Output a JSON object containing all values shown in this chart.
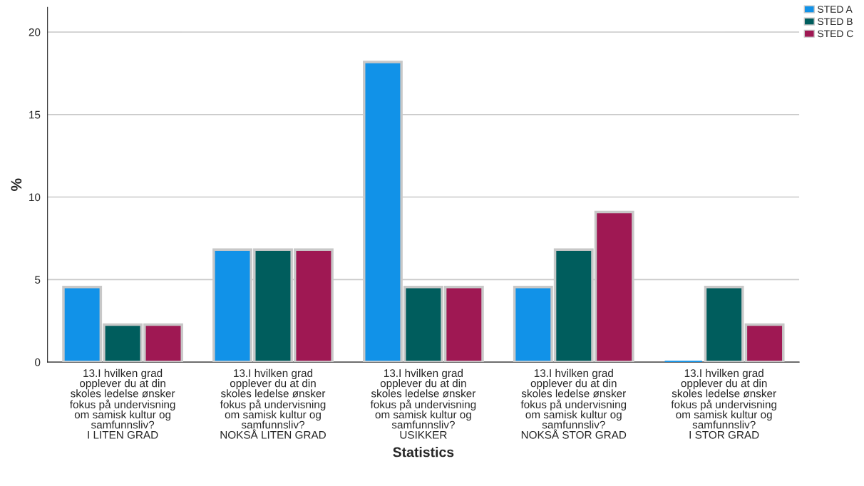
{
  "chart_data": {
    "type": "bar",
    "ylabel": "%",
    "xlabel": "Statistics",
    "categories": [
      "13.I hvilken grad\nopplever du at din\nskoles ledelse ønsker\nfokus på undervisning\nom samisk kultur og\nsamfunnsliv?\nI LITEN GRAD",
      "13.I hvilken grad\nopplever du at din\nskoles ledelse ønsker\nfokus på undervisning\nom samisk kultur og\nsamfunnsliv?\nNOKSÅ LITEN GRAD",
      "13.I hvilken grad\nopplever du at din\nskoles ledelse ønsker\nfokus på undervisning\nom samisk kultur og\nsamfunnsliv?\nUSIKKER",
      "13.I hvilken grad\nopplever du at din\nskoles ledelse ønsker\nfokus på undervisning\nom samisk kultur og\nsamfunnsliv?\nNOKSÅ STOR GRAD",
      "13.I hvilken grad\nopplever du at din\nskoles ledelse ønsker\nfokus på undervisning\nom samisk kultur og\nsamfunnsliv?\nI STOR GRAD"
    ],
    "series": [
      {
        "name": "STED A",
        "color": "#1192e8",
        "values": [
          4.55,
          6.82,
          18.18,
          4.55,
          0
        ]
      },
      {
        "name": "STED B",
        "color": "#005d5d",
        "values": [
          2.27,
          6.82,
          4.55,
          6.82,
          4.55
        ]
      },
      {
        "name": "STED C",
        "color": "#9f1853",
        "values": [
          2.27,
          6.82,
          4.55,
          9.09,
          2.27
        ]
      }
    ],
    "ylim": [
      0,
      21.5
    ],
    "yticks": [
      0,
      5,
      10,
      15,
      20
    ],
    "grid": "y",
    "legend": "top right"
  }
}
